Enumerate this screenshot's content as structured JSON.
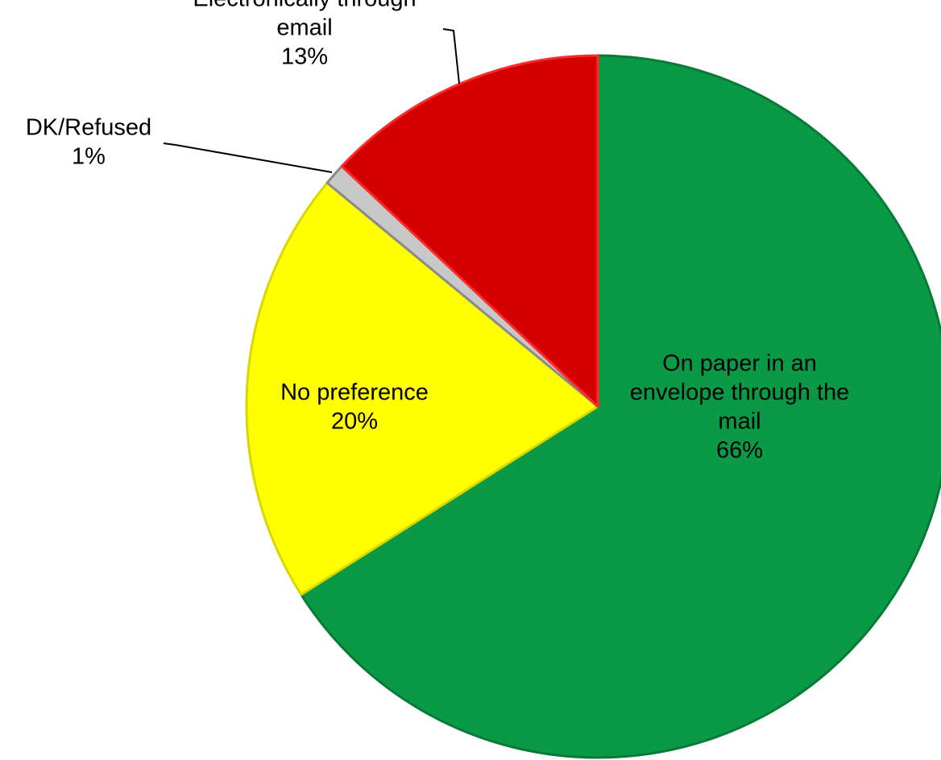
{
  "chart_data": {
    "type": "pie",
    "title": "",
    "slices": [
      {
        "id": "paper-mail",
        "label_lines": [
          "On paper in an",
          "envelope through the",
          "mail"
        ],
        "percent_label": "66%",
        "value": 66,
        "color": "#0a9a46",
        "edge_color": "#067a36"
      },
      {
        "id": "no-preference",
        "label_lines": [
          "No preference"
        ],
        "percent_label": "20%",
        "value": 20,
        "color": "#ffff00",
        "edge_color": "#d8d800"
      },
      {
        "id": "dk-refused",
        "label_lines": [
          "DK/Refused"
        ],
        "percent_label": "1%",
        "value": 1,
        "color": "#c8c8c8",
        "edge_color": "#8a8a8a"
      },
      {
        "id": "email",
        "label_lines": [
          "Electronically through",
          "email"
        ],
        "percent_label": "13%",
        "value": 13,
        "color": "#d40000",
        "edge_color": "#ff2a2a"
      }
    ],
    "legend": "none",
    "labels_position": "on slices and outside with leader lines"
  }
}
